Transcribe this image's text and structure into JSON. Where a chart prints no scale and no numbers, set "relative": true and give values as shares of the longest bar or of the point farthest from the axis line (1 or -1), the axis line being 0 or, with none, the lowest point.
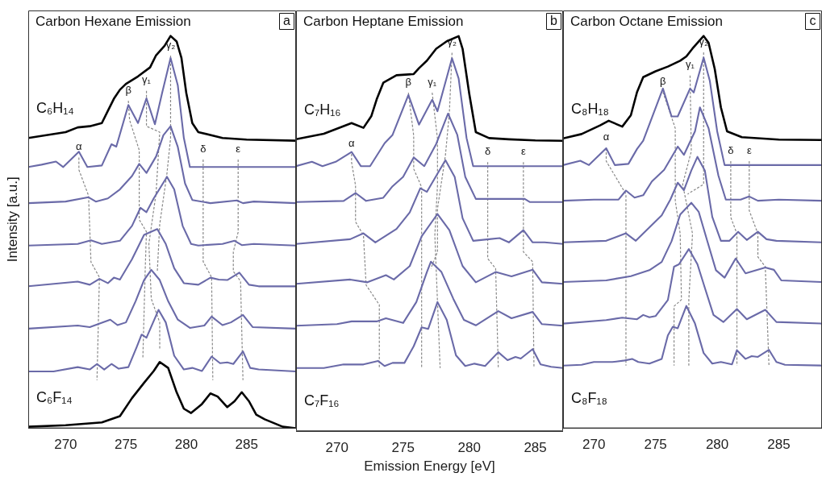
{
  "chart_data": [
    {
      "type": "line",
      "title": "Carbon Hexane Emission",
      "ylabel": "Intensity [a.u.]",
      "relative": true,
      "marker": "none",
      "xlim": [
        266.9,
        289.1
      ],
      "xticks": [
        270,
        275,
        280,
        285
      ],
      "series": [
        {
          "name": "C₆H₁₄",
          "color": "#000000",
          "x": [
            266.9,
            270,
            271,
            272,
            273,
            273.5,
            274,
            274.5,
            275,
            276,
            277,
            277.5,
            278.2,
            278.7,
            279.2,
            279.6,
            280,
            280.5,
            281,
            283,
            285,
            289.1
          ],
          "values": [
            0.74,
            0.755,
            0.767,
            0.77,
            0.778,
            0.809,
            0.84,
            0.863,
            0.878,
            0.897,
            0.92,
            0.951,
            0.975,
            1,
            0.986,
            0.944,
            0.855,
            0.778,
            0.755,
            0.74,
            0.736,
            0.733
          ]
        },
        {
          "color": "#6a6aa8",
          "x": [
            266.9,
            268,
            269.2,
            269.8,
            271.1,
            271.8,
            273,
            273.8,
            274.2,
            275.2,
            276,
            276.7,
            277.4,
            278,
            278.7,
            279.3,
            279.8,
            280.3,
            289.1
          ],
          "values": [
            0.666,
            0.672,
            0.68,
            0.666,
            0.705,
            0.666,
            0.67,
            0.724,
            0.718,
            0.824,
            0.778,
            0.841,
            0.775,
            0.855,
            0.944,
            0.874,
            0.74,
            0.666,
            0.666
          ]
        },
        {
          "color": "#6a6aa8",
          "x": [
            266.9,
            270,
            271.9,
            272.5,
            273.5,
            274.5,
            275.5,
            276.1,
            276.7,
            277.5,
            278.1,
            278.7,
            279.3,
            279.9,
            280.5,
            282,
            284.2,
            284.7,
            285.6,
            289.1
          ],
          "values": [
            0.574,
            0.578,
            0.589,
            0.578,
            0.586,
            0.609,
            0.643,
            0.674,
            0.651,
            0.693,
            0.747,
            0.77,
            0.717,
            0.624,
            0.582,
            0.574,
            0.581,
            0.574,
            0.578,
            0.574
          ]
        },
        {
          "color": "#6a6aa8",
          "x": [
            266.9,
            271,
            272.1,
            273,
            274.5,
            275.5,
            276.2,
            276.7,
            277.3,
            278.4,
            279,
            279.7,
            280.4,
            281,
            283,
            284,
            284.6,
            285.6,
            289.1
          ],
          "values": [
            0.466,
            0.47,
            0.479,
            0.47,
            0.478,
            0.516,
            0.562,
            0.551,
            0.586,
            0.641,
            0.609,
            0.516,
            0.47,
            0.466,
            0.47,
            0.478,
            0.467,
            0.47,
            0.466
          ]
        },
        {
          "color": "#6a6aa8",
          "x": [
            266.9,
            271,
            272,
            272.8,
            273.5,
            274,
            274.5,
            275.5,
            276.5,
            277.6,
            278.3,
            279,
            279.8,
            281,
            282,
            282.7,
            283.4,
            284.4,
            285.2,
            286,
            289.1
          ],
          "values": [
            0.362,
            0.374,
            0.366,
            0.381,
            0.37,
            0.384,
            0.379,
            0.431,
            0.493,
            0.508,
            0.47,
            0.408,
            0.37,
            0.366,
            0.384,
            0.379,
            0.378,
            0.397,
            0.366,
            0.362,
            0.362
          ]
        },
        {
          "color": "#6a6aa8",
          "x": [
            266.9,
            271,
            272,
            273.7,
            274.3,
            275,
            275.8,
            276.5,
            277.1,
            277.8,
            278.5,
            279.3,
            280.3,
            281.5,
            282.1,
            283,
            283.7,
            284.7,
            285.5,
            289.1
          ],
          "values": [
            0.254,
            0.262,
            0.258,
            0.277,
            0.263,
            0.27,
            0.324,
            0.378,
            0.404,
            0.378,
            0.324,
            0.277,
            0.256,
            0.262,
            0.285,
            0.263,
            0.27,
            0.289,
            0.258,
            0.254
          ]
        },
        {
          "color": "#6a6aa8",
          "x": [
            266.9,
            269,
            271,
            272,
            272.6,
            273.2,
            273.8,
            274.4,
            275.2,
            275.9,
            276.3,
            276.7,
            277.7,
            278.3,
            279,
            279.8,
            280.5,
            281.3,
            282.1,
            282.8,
            283.4,
            283.9,
            284.7,
            285.3,
            286,
            289.1
          ],
          "values": [
            0.145,
            0.145,
            0.156,
            0.15,
            0.164,
            0.15,
            0.164,
            0.152,
            0.156,
            0.208,
            0.239,
            0.231,
            0.302,
            0.27,
            0.185,
            0.15,
            0.154,
            0.146,
            0.183,
            0.166,
            0.168,
            0.164,
            0.196,
            0.154,
            0.15,
            0.145
          ]
        },
        {
          "name": "C₆F₁₄",
          "color": "#000000",
          "x": [
            266.9,
            270,
            273,
            274.5,
            275.5,
            276.5,
            277.3,
            277.8,
            278.5,
            279.2,
            279.8,
            280.4,
            281.3,
            282,
            282.6,
            283.4,
            284,
            284.6,
            285.2,
            285.8,
            286.5,
            288,
            289.1
          ],
          "values": [
            0.004,
            0.008,
            0.015,
            0.031,
            0.077,
            0.116,
            0.146,
            0.169,
            0.154,
            0.092,
            0.05,
            0.039,
            0.062,
            0.089,
            0.081,
            0.054,
            0.069,
            0.092,
            0.069,
            0.035,
            0.023,
            0.004,
            0
          ]
        },
        {
          "name": "α",
          "color": "#888888",
          "line_style": "dashed",
          "x": [
            271.1,
            271.1,
            271.9,
            272.1,
            272.8,
            272.6
          ],
          "values": [
            0.69,
            0.659,
            0.593,
            0.424,
            0.385,
            0.123
          ]
        },
        {
          "name": "β",
          "color": "#888888",
          "line_style": "dashed",
          "x": [
            275.2,
            275.3,
            276.1,
            276.1,
            276.7,
            276.6,
            276.4
          ],
          "values": [
            0.835,
            0.786,
            0.709,
            0.532,
            0.501,
            0.408,
            0.177
          ]
        },
        {
          "name": "γ₁",
          "color": "#888888",
          "line_style": "dashed",
          "x": [
            276.7,
            276.7,
            277.8,
            277.5,
            276.9,
            277.1,
            277.8,
            277.8
          ],
          "values": [
            0.86,
            0.77,
            0.755,
            0.6,
            0.47,
            0.33,
            0.27,
            0.2
          ]
        },
        {
          "name": "γ₂",
          "color": "#888888",
          "line_style": "dashed",
          "x": [
            278.7,
            278.7,
            278.4,
            277.8,
            277.6
          ],
          "values": [
            0.95,
            0.74,
            0.65,
            0.52,
            0.4
          ]
        },
        {
          "name": "δ",
          "color": "#888888",
          "line_style": "dashed",
          "x": [
            281.4,
            281.4,
            282.1,
            282.2
          ],
          "values": [
            0.685,
            0.425,
            0.385,
            0.123
          ]
        },
        {
          "name": "ε",
          "color": "#888888",
          "line_style": "dashed",
          "x": [
            284.3,
            284.3,
            283.9,
            283.9,
            284.5,
            284.7
          ],
          "values": [
            0.685,
            0.5,
            0.45,
            0.4,
            0.375,
            0.123
          ]
        }
      ],
      "annotations": [
        "a"
      ]
    },
    {
      "type": "line",
      "title": "Carbon Heptane Emission",
      "xlabel": "Emission Energy [eV]",
      "relative": true,
      "marker": "none",
      "xlim": [
        266.9,
        287.1
      ],
      "xticks": [
        270,
        275,
        280,
        285
      ],
      "series": [
        {
          "name": "C₇H₁₆",
          "color": "#000000",
          "x": [
            266.9,
            269,
            271.1,
            272,
            272.6,
            273,
            273.5,
            274.5,
            275.8,
            276.2,
            276.8,
            277.5,
            278.3,
            279.2,
            279.5,
            280,
            280.5,
            281.5,
            283,
            285,
            287.1
          ],
          "values": [
            0.739,
            0.753,
            0.78,
            0.768,
            0.798,
            0.84,
            0.882,
            0.901,
            0.904,
            0.919,
            0.938,
            0.968,
            0.987,
            1,
            0.968,
            0.855,
            0.757,
            0.742,
            0.739,
            0.736,
            0.735
          ]
        },
        {
          "color": "#6a6aa8",
          "x": [
            266.9,
            268.1,
            268.9,
            269.9,
            271.1,
            271.8,
            272.5,
            273.6,
            274.2,
            275.4,
            276.2,
            277.2,
            277.6,
            278.7,
            279.2,
            279.8,
            280.3,
            287.1
          ],
          "values": [
            0.671,
            0.682,
            0.671,
            0.682,
            0.707,
            0.671,
            0.671,
            0.729,
            0.75,
            0.851,
            0.776,
            0.839,
            0.81,
            0.944,
            0.893,
            0.742,
            0.671,
            0.671
          ]
        },
        {
          "color": "#6a6aa8",
          "x": [
            266.9,
            270.5,
            271.4,
            272.2,
            273.5,
            274.2,
            275,
            275.8,
            276.6,
            277.5,
            278.4,
            279.1,
            279.7,
            280.5,
            284.2,
            284.6,
            287.1
          ],
          "values": [
            0.58,
            0.583,
            0.603,
            0.583,
            0.591,
            0.62,
            0.644,
            0.693,
            0.671,
            0.727,
            0.804,
            0.75,
            0.644,
            0.588,
            0.588,
            0.58,
            0.58
          ]
        },
        {
          "color": "#6a6aa8",
          "x": [
            266.9,
            271,
            272,
            272.9,
            274.5,
            275.5,
            276.3,
            276.8,
            278.2,
            278.9,
            279.5,
            280.3,
            281.5,
            282.3,
            283,
            284.1,
            284.8,
            285.7,
            287.1
          ],
          "values": [
            0.474,
            0.486,
            0.501,
            0.478,
            0.512,
            0.554,
            0.615,
            0.606,
            0.686,
            0.644,
            0.539,
            0.482,
            0.486,
            0.489,
            0.478,
            0.509,
            0.478,
            0.478,
            0.474
          ]
        },
        {
          "color": "#6a6aa8",
          "x": [
            266.9,
            271,
            272.3,
            273.7,
            274.3,
            275.5,
            276.4,
            277.6,
            278.5,
            279.5,
            280.5,
            282,
            283.2,
            284.8,
            285.5,
            287.1
          ],
          "values": [
            0.373,
            0.384,
            0.377,
            0.395,
            0.384,
            0.418,
            0.493,
            0.55,
            0.509,
            0.418,
            0.377,
            0.403,
            0.392,
            0.409,
            0.377,
            0.373
          ]
        },
        {
          "color": "#6a6aa8",
          "x": [
            266.9,
            270,
            271.1,
            273,
            273.7,
            275,
            276,
            276.8,
            277.1,
            277.9,
            278.8,
            279.6,
            280.5,
            282.2,
            283.2,
            284.8,
            285.5,
            287.1
          ],
          "values": [
            0.267,
            0.271,
            0.278,
            0.278,
            0.286,
            0.274,
            0.327,
            0.403,
            0.429,
            0.403,
            0.335,
            0.282,
            0.268,
            0.304,
            0.286,
            0.302,
            0.271,
            0.267
          ]
        },
        {
          "color": "#6a6aa8",
          "x": [
            266.9,
            269,
            270.5,
            272,
            273.1,
            273.6,
            274.2,
            275.1,
            275.8,
            276.4,
            276.9,
            277.6,
            278.3,
            279,
            279.7,
            280.4,
            281.2,
            282.2,
            282.9,
            283.5,
            283.9,
            284.8,
            285.4,
            286.2,
            287.1
          ],
          "values": [
            0.16,
            0.16,
            0.169,
            0.169,
            0.178,
            0.165,
            0.173,
            0.173,
            0.215,
            0.263,
            0.259,
            0.327,
            0.282,
            0.192,
            0.165,
            0.171,
            0.165,
            0.2,
            0.18,
            0.188,
            0.184,
            0.208,
            0.169,
            0.163,
            0.16
          ]
        },
        {
          "name": "α",
          "color": "#888888",
          "line_style": "dashed",
          "x": [
            271.1,
            271.1,
            271.4,
            271.4,
            272,
            272.2,
            273.2,
            273.2
          ],
          "values": [
            0.702,
            0.681,
            0.622,
            0.53,
            0.496,
            0.37,
            0.32,
            0.16
          ]
        },
        {
          "name": "β",
          "color": "#888888",
          "line_style": "dashed",
          "x": [
            275.4,
            275.8,
            275.8,
            276.4,
            276.4
          ],
          "values": [
            0.857,
            0.748,
            0.664,
            0.618,
            0.16
          ]
        },
        {
          "name": "γ₁",
          "color": "#888888",
          "line_style": "dashed",
          "x": [
            277.2,
            277.6,
            277.6,
            277.4,
            277.8
          ],
          "values": [
            0.857,
            0.74,
            0.622,
            0.496,
            0.16
          ]
        },
        {
          "name": "γ₂",
          "color": "#888888",
          "line_style": "dashed",
          "x": [
            278.7,
            278.5,
            278.2,
            277.6,
            277.6,
            277.1
          ],
          "values": [
            0.958,
            0.807,
            0.698,
            0.563,
            0.454,
            0.412
          ]
        },
        {
          "name": "δ",
          "color": "#888888",
          "line_style": "dashed",
          "x": [
            281.4,
            281.4,
            282,
            282.2
          ],
          "values": [
            0.681,
            0.437,
            0.412,
            0.16
          ]
        },
        {
          "name": "ε",
          "color": "#888888",
          "line_style": "dashed",
          "x": [
            284.1,
            284.1,
            284.8,
            284.9
          ],
          "values": [
            0.681,
            0.454,
            0.429,
            0.16
          ]
        }
      ],
      "annotations": [
        "b",
        "C₇F₁₆"
      ]
    },
    {
      "type": "line",
      "title": "Carbon Octane Emission",
      "relative": true,
      "marker": "none",
      "xlim": [
        267.5,
        288.5
      ],
      "xticks": [
        270,
        275,
        280,
        285
      ],
      "series": [
        {
          "name": "C₈H₁₈",
          "color": "#000000",
          "x": [
            267.5,
            269,
            270.5,
            271.2,
            272.3,
            273,
            273.5,
            274,
            275,
            276,
            277,
            277.5,
            278,
            278.9,
            279.3,
            279.8,
            280.3,
            280.8,
            282,
            285,
            288.5
          ],
          "values": [
            0.739,
            0.75,
            0.772,
            0.784,
            0.769,
            0.798,
            0.857,
            0.895,
            0.91,
            0.922,
            0.937,
            0.948,
            0.968,
            1,
            0.983,
            0.916,
            0.818,
            0.757,
            0.742,
            0.736,
            0.735
          ]
        },
        {
          "color": "#6a6aa8",
          "x": [
            267.5,
            268.9,
            269.6,
            271,
            271.7,
            272.8,
            273.5,
            274,
            275.6,
            276.3,
            276.8,
            277.8,
            278.1,
            278.9,
            279.4,
            280,
            280.6,
            288.5
          ],
          "values": [
            0.671,
            0.682,
            0.671,
            0.714,
            0.671,
            0.674,
            0.712,
            0.733,
            0.866,
            0.795,
            0.795,
            0.866,
            0.856,
            0.945,
            0.886,
            0.757,
            0.671,
            0.671
          ]
        },
        {
          "color": "#6a6aa8",
          "x": [
            267.5,
            270,
            272,
            272.6,
            273.3,
            274,
            274.7,
            275.7,
            276.8,
            277.3,
            278.2,
            278.6,
            279.3,
            280.1,
            280.7,
            281.9,
            282.6,
            283.3,
            285,
            288.5
          ],
          "values": [
            0.58,
            0.583,
            0.583,
            0.606,
            0.588,
            0.594,
            0.629,
            0.659,
            0.718,
            0.697,
            0.757,
            0.818,
            0.765,
            0.644,
            0.583,
            0.583,
            0.591,
            0.58,
            0.583,
            0.58
          ]
        },
        {
          "color": "#6a6aa8",
          "x": [
            267.5,
            271,
            272.6,
            273.4,
            274.5,
            275.5,
            276.2,
            276.8,
            277.3,
            277.9,
            278.4,
            279,
            279.6,
            280.3,
            281,
            281.7,
            282.4,
            283.3,
            284,
            284.8,
            288.5
          ],
          "values": [
            0.474,
            0.478,
            0.497,
            0.478,
            0.512,
            0.543,
            0.583,
            0.626,
            0.607,
            0.657,
            0.692,
            0.657,
            0.539,
            0.478,
            0.478,
            0.501,
            0.48,
            0.501,
            0.482,
            0.478,
            0.474
          ]
        },
        {
          "color": "#6a6aa8",
          "x": [
            267.5,
            271,
            273,
            274.5,
            275.5,
            276.3,
            277,
            277.9,
            278.5,
            279.2,
            279.9,
            280.6,
            281.5,
            282.3,
            283.9,
            284.6,
            285.2,
            288.5
          ],
          "values": [
            0.373,
            0.377,
            0.388,
            0.403,
            0.424,
            0.477,
            0.545,
            0.575,
            0.552,
            0.477,
            0.403,
            0.384,
            0.433,
            0.395,
            0.41,
            0.404,
            0.377,
            0.373
          ]
        },
        {
          "color": "#6a6aa8",
          "x": [
            267.5,
            271,
            272.3,
            273.5,
            274,
            274.5,
            275,
            276,
            276.5,
            276.9,
            277.7,
            278.4,
            279,
            279.7,
            280.5,
            281.6,
            282.4,
            283.9,
            284.8,
            288.5
          ],
          "values": [
            0.267,
            0.276,
            0.282,
            0.278,
            0.289,
            0.283,
            0.286,
            0.327,
            0.412,
            0.418,
            0.457,
            0.418,
            0.358,
            0.289,
            0.271,
            0.304,
            0.278,
            0.302,
            0.271,
            0.267
          ]
        },
        {
          "color": "#6a6aa8",
          "x": [
            267.5,
            269,
            270,
            271.5,
            272.5,
            273.1,
            273.6,
            274.5,
            275.5,
            276,
            276.4,
            276.8,
            277.5,
            278.2,
            278.9,
            279.6,
            280.3,
            281.2,
            281.6,
            282.3,
            282.8,
            283.3,
            284.2,
            284.8,
            285.5,
            288.5
          ],
          "values": [
            0.16,
            0.162,
            0.169,
            0.169,
            0.173,
            0.177,
            0.169,
            0.165,
            0.177,
            0.237,
            0.259,
            0.255,
            0.312,
            0.267,
            0.192,
            0.165,
            0.169,
            0.163,
            0.199,
            0.177,
            0.184,
            0.182,
            0.2,
            0.169,
            0.162,
            0.16
          ]
        },
        {
          "name": "α",
          "color": "#888888",
          "line_style": "dashed",
          "x": [
            271,
            271,
            272.6,
            272.6
          ],
          "values": [
            0.714,
            0.681,
            0.597,
            0.16
          ]
        },
        {
          "name": "β",
          "color": "#888888",
          "line_style": "dashed",
          "x": [
            275.6,
            276.6,
            276.6,
            277,
            277.1,
            276.5,
            276.5
          ],
          "values": [
            0.857,
            0.765,
            0.58,
            0.496,
            0.328,
            0.311,
            0.16
          ]
        },
        {
          "name": "γ₁",
          "color": "#888888",
          "line_style": "dashed",
          "x": [
            277.8,
            277.9,
            277.2,
            278,
            277.7,
            277.7
          ],
          "values": [
            0.899,
            0.706,
            0.622,
            0.496,
            0.328,
            0.16
          ]
        },
        {
          "name": "γ₂",
          "color": "#888888",
          "line_style": "dashed",
          "x": [
            278.9,
            278.9,
            277.6
          ],
          "values": [
            0.958,
            0.622,
            0.597
          ]
        },
        {
          "name": "δ",
          "color": "#888888",
          "line_style": "dashed",
          "x": [
            281.1,
            281.1,
            281.6,
            281.6
          ],
          "values": [
            0.681,
            0.538,
            0.496,
            0.16
          ]
        },
        {
          "name": "ε",
          "color": "#888888",
          "line_style": "dashed",
          "x": [
            282.6,
            282.6,
            283.3,
            283.3,
            283.9,
            284.2
          ],
          "values": [
            0.681,
            0.555,
            0.496,
            0.437,
            0.412,
            0.16
          ]
        }
      ],
      "annotations": [
        "c",
        "C₈F₁₈"
      ]
    }
  ]
}
